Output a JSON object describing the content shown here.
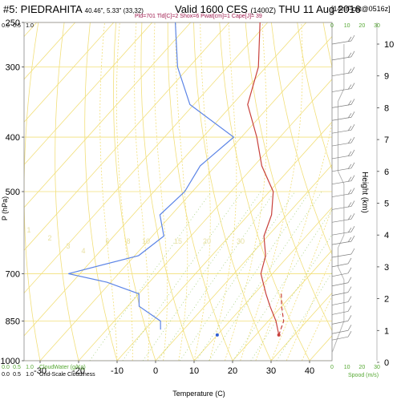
{
  "header": {
    "station": "#5: PIEDRAHITA",
    "coords": "40.46\", 5.33\" (33,32)",
    "valid_label": "Valid 1600 CES",
    "valid_utc": "(1400Z)",
    "date": "THU 11 Aug 2016",
    "forecast": "[14hrFcst@0516z]",
    "indices": "Pld=701 Tld[C]=2 Shox=6 Pwat[cm]=1 Cape[J]= 39"
  },
  "colors": {
    "temperature": "#c8403b",
    "dewpoint": "#5b84e6",
    "parcel": "#c8403b",
    "isotherm": "#f2df7a",
    "dry_adiabat": "#f2df7a",
    "moist_adiabat": "#f2df7a",
    "mixing_ratio": "#9acb6a",
    "axis_green": "#55a832",
    "wind_barb": "#808080"
  },
  "chart_data": [
    {
      "type": "line",
      "subtype": "skew-t",
      "xlabel": "Temperature (C)",
      "ylabel": "P (hPa)",
      "y2label": "Height (km)",
      "x_ticks": [
        "-30",
        "-20",
        "-10",
        "0",
        "10",
        "20",
        "30",
        "40"
      ],
      "y_ticks": [
        "250",
        "300",
        "400",
        "500",
        "700",
        "850",
        "1000"
      ],
      "y2_ticks": [
        "0",
        "1",
        "2",
        "3",
        "4",
        "5",
        "6",
        "7",
        "8",
        "9",
        "10"
      ],
      "mixing_ratio_labels": [
        "1",
        "2",
        "3",
        "4",
        "6",
        "8",
        "10",
        "15",
        "20",
        "30"
      ],
      "series": [
        {
          "name": "Temperature",
          "values": [
            [
              -52,
              250
            ],
            [
              -42,
              300
            ],
            [
              -36,
              350
            ],
            [
              -26,
              400
            ],
            [
              -18,
              450
            ],
            [
              -9,
              500
            ],
            [
              -4,
              550
            ],
            [
              -1,
              600
            ],
            [
              4,
              650
            ],
            [
              7,
              700
            ],
            [
              13,
              760
            ],
            [
              17,
              800
            ],
            [
              22,
              850
            ],
            [
              26,
              900
            ]
          ]
        },
        {
          "name": "Dewpoint",
          "values": [
            [
              -74,
              250
            ],
            [
              -63,
              300
            ],
            [
              -51,
              350
            ],
            [
              -32,
              400
            ],
            [
              -34,
              450
            ],
            [
              -32,
              500
            ],
            [
              -33,
              550
            ],
            [
              -27,
              600
            ],
            [
              -29,
              650
            ],
            [
              -43,
              700
            ],
            [
              -31,
              725
            ],
            [
              -20,
              760
            ],
            [
              -17,
              800
            ],
            [
              -8,
              850
            ],
            [
              -6,
              880
            ]
          ]
        },
        {
          "name": "Parcel",
          "values": [
            [
              17,
              760
            ],
            [
              20,
              800
            ],
            [
              24,
              850
            ],
            [
              26,
              900
            ]
          ]
        }
      ],
      "surface_dewpoint_point": [
        10,
        900
      ],
      "ylim": [
        1000,
        250
      ],
      "xlim": [
        -35,
        45
      ]
    },
    {
      "type": "bar",
      "title": "",
      "xlabel": "Spood (m/s)",
      "x_ticks": [
        "0",
        "10",
        "20",
        "30"
      ],
      "y_unit": "Height (km)",
      "heights_km": [
        0.7,
        0.9,
        1.2,
        1.5,
        1.8,
        2.1,
        2.4,
        2.7,
        3.0,
        3.3,
        3.7,
        4.0,
        4.4,
        4.8,
        5.2,
        5.6,
        6.0,
        6.4,
        6.8,
        7.2,
        7.6,
        8.0,
        8.5,
        9.0,
        9.5,
        10.0
      ],
      "speed_profile": [
        [
          0,
          0.3
        ],
        [
          8,
          1.3
        ],
        [
          8,
          2.6
        ],
        [
          4,
          3.0
        ],
        [
          4,
          3.6
        ],
        [
          8,
          4.0
        ],
        [
          8,
          5.6
        ],
        [
          4,
          6.0
        ],
        [
          4,
          8.2
        ],
        [
          8,
          8.6
        ],
        [
          8,
          10
        ]
      ]
    }
  ],
  "left_axis": {
    "cloudwater_scale": [
      "0.0",
      "0.5",
      "1.0"
    ],
    "cloudwater_label": "CloudWater (g/Kg)",
    "cloudiness_scale": [
      "0.0",
      "0.5",
      "1.0"
    ],
    "cloudiness_label": "Grid-Scale Cloudiness"
  },
  "right_axis": {
    "top_scale": [
      "0",
      "10",
      "20",
      "30"
    ],
    "bottom_scale": [
      "0",
      "10",
      "20",
      "30"
    ]
  }
}
